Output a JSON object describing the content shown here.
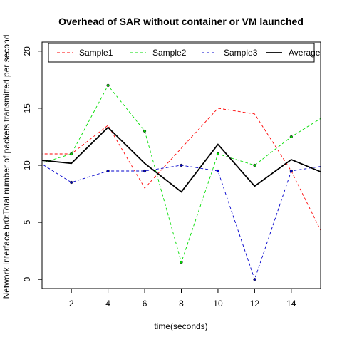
{
  "chart_data": {
    "type": "line",
    "title": "Overhead of SAR without container or VM launched",
    "xlabel": "time(seconds)",
    "ylabel": "Network Interface br0:Total number of packets transmitted per second",
    "xlim": [
      0.4,
      15.6
    ],
    "ylim": [
      -0.8,
      20.8
    ],
    "xticks": [
      2,
      4,
      6,
      8,
      10,
      12,
      14
    ],
    "yticks": [
      0,
      5,
      10,
      15,
      20
    ],
    "grid": false,
    "legend_position": "top",
    "x": [
      0,
      2,
      4,
      6,
      8,
      10,
      12,
      14,
      16
    ],
    "series": [
      {
        "name": "Sample1",
        "color": "#ff0000",
        "dash": "dashed",
        "points": false,
        "values": [
          11.0,
          11.0,
          13.5,
          8.0,
          11.5,
          15.0,
          14.5,
          9.5,
          3.0
        ]
      },
      {
        "name": "Sample2",
        "color": "#00dd00",
        "dash": "dashed",
        "points": true,
        "values": [
          10.0,
          11.0,
          17.0,
          13.0,
          1.5,
          11.0,
          10.0,
          12.5,
          14.5
        ]
      },
      {
        "name": "Sample3",
        "color": "#0000cc",
        "dash": "dashed",
        "points": true,
        "values": [
          10.5,
          8.5,
          9.5,
          9.5,
          10.0,
          9.5,
          0.0,
          9.5,
          10.0
        ]
      },
      {
        "name": "Average",
        "color": "#000000",
        "dash": "solid",
        "points": false,
        "values": [
          10.5,
          10.17,
          13.33,
          10.17,
          7.67,
          11.83,
          8.17,
          10.5,
          9.17
        ]
      }
    ]
  }
}
